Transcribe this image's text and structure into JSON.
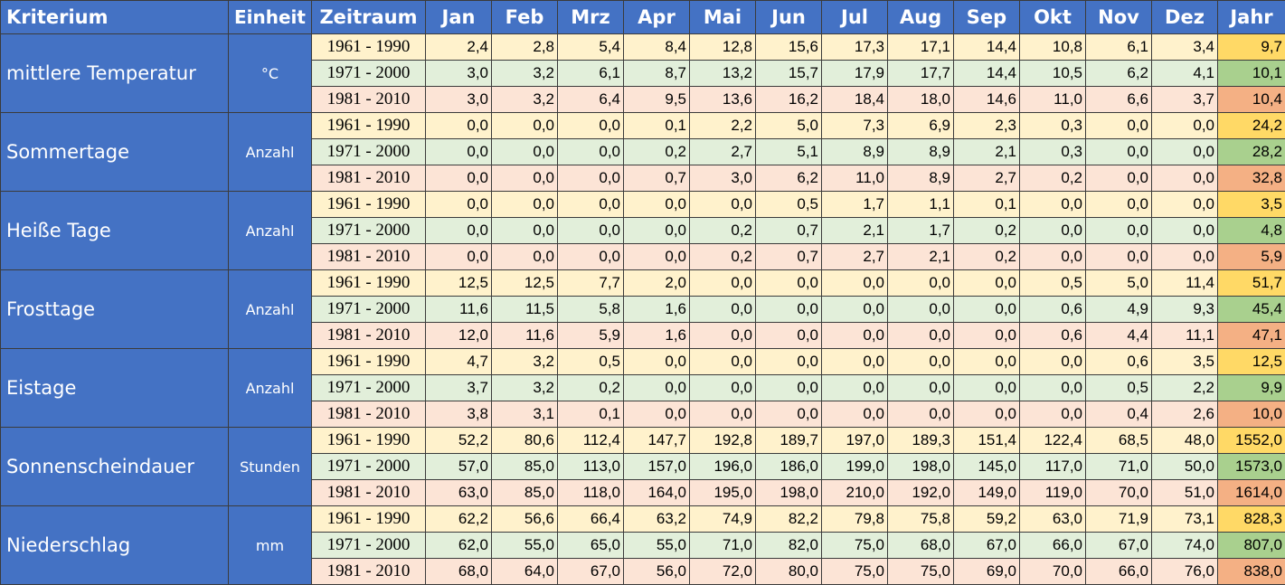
{
  "header": {
    "kriterium": "Kriterium",
    "einheit": "Einheit",
    "zeitraum": "Zeitraum",
    "months": [
      "Jan",
      "Feb",
      "Mrz",
      "Apr",
      "Mai",
      "Jun",
      "Jul",
      "Aug",
      "Sep",
      "Okt",
      "Nov",
      "Dez"
    ],
    "jahr": "Jahr"
  },
  "row_colors": {
    "period_1961_1990": "#fff2cc",
    "period_1971_2000": "#e2efda",
    "period_1981_2010": "#fce4d6",
    "year_1961_1990": "#ffd966",
    "year_1971_2000": "#a9d08e",
    "year_1981_2010": "#f4b084",
    "label_cells": "#4472c4"
  },
  "groups": [
    {
      "label": "mittlere Temperatur",
      "unit": "°C",
      "rows": [
        {
          "period": "1961 - 1990",
          "values": [
            "2,4",
            "2,8",
            "5,4",
            "8,4",
            "12,8",
            "15,6",
            "17,3",
            "17,1",
            "14,4",
            "10,8",
            "6,1",
            "3,4"
          ],
          "year": "9,7"
        },
        {
          "period": "1971 - 2000",
          "values": [
            "3,0",
            "3,2",
            "6,1",
            "8,7",
            "13,2",
            "15,7",
            "17,9",
            "17,7",
            "14,4",
            "10,5",
            "6,2",
            "4,1"
          ],
          "year": "10,1"
        },
        {
          "period": "1981 - 2010",
          "values": [
            "3,0",
            "3,2",
            "6,4",
            "9,5",
            "13,6",
            "16,2",
            "18,4",
            "18,0",
            "14,6",
            "11,0",
            "6,6",
            "3,7"
          ],
          "year": "10,4"
        }
      ]
    },
    {
      "label": "Sommertage",
      "unit": "Anzahl",
      "rows": [
        {
          "period": "1961 - 1990",
          "values": [
            "0,0",
            "0,0",
            "0,0",
            "0,1",
            "2,2",
            "5,0",
            "7,3",
            "6,9",
            "2,3",
            "0,3",
            "0,0",
            "0,0"
          ],
          "year": "24,2"
        },
        {
          "period": "1971 - 2000",
          "values": [
            "0,0",
            "0,0",
            "0,0",
            "0,2",
            "2,7",
            "5,1",
            "8,9",
            "8,9",
            "2,1",
            "0,3",
            "0,0",
            "0,0"
          ],
          "year": "28,2"
        },
        {
          "period": "1981 - 2010",
          "values": [
            "0,0",
            "0,0",
            "0,0",
            "0,7",
            "3,0",
            "6,2",
            "11,0",
            "8,9",
            "2,7",
            "0,2",
            "0,0",
            "0,0"
          ],
          "year": "32,8"
        }
      ]
    },
    {
      "label": "Heiße Tage",
      "unit": "Anzahl",
      "rows": [
        {
          "period": "1961 - 1990",
          "values": [
            "0,0",
            "0,0",
            "0,0",
            "0,0",
            "0,0",
            "0,5",
            "1,7",
            "1,1",
            "0,1",
            "0,0",
            "0,0",
            "0,0"
          ],
          "year": "3,5"
        },
        {
          "period": "1971 - 2000",
          "values": [
            "0,0",
            "0,0",
            "0,0",
            "0,0",
            "0,2",
            "0,7",
            "2,1",
            "1,7",
            "0,2",
            "0,0",
            "0,0",
            "0,0"
          ],
          "year": "4,8"
        },
        {
          "period": "1981 - 2010",
          "values": [
            "0,0",
            "0,0",
            "0,0",
            "0,0",
            "0,2",
            "0,7",
            "2,7",
            "2,1",
            "0,2",
            "0,0",
            "0,0",
            "0,0"
          ],
          "year": "5,9"
        }
      ]
    },
    {
      "label": "Frosttage",
      "unit": "Anzahl",
      "rows": [
        {
          "period": "1961 - 1990",
          "values": [
            "12,5",
            "12,5",
            "7,7",
            "2,0",
            "0,0",
            "0,0",
            "0,0",
            "0,0",
            "0,0",
            "0,5",
            "5,0",
            "11,4"
          ],
          "year": "51,7"
        },
        {
          "period": "1971 - 2000",
          "values": [
            "11,6",
            "11,5",
            "5,8",
            "1,6",
            "0,0",
            "0,0",
            "0,0",
            "0,0",
            "0,0",
            "0,6",
            "4,9",
            "9,3"
          ],
          "year": "45,4"
        },
        {
          "period": "1981 - 2010",
          "values": [
            "12,0",
            "11,6",
            "5,9",
            "1,6",
            "0,0",
            "0,0",
            "0,0",
            "0,0",
            "0,0",
            "0,6",
            "4,4",
            "11,1"
          ],
          "year": "47,1"
        }
      ]
    },
    {
      "label": "Eistage",
      "unit": "Anzahl",
      "rows": [
        {
          "period": "1961 - 1990",
          "values": [
            "4,7",
            "3,2",
            "0,5",
            "0,0",
            "0,0",
            "0,0",
            "0,0",
            "0,0",
            "0,0",
            "0,0",
            "0,6",
            "3,5"
          ],
          "year": "12,5"
        },
        {
          "period": "1971 - 2000",
          "values": [
            "3,7",
            "3,2",
            "0,2",
            "0,0",
            "0,0",
            "0,0",
            "0,0",
            "0,0",
            "0,0",
            "0,0",
            "0,5",
            "2,2"
          ],
          "year": "9,9"
        },
        {
          "period": "1981 - 2010",
          "values": [
            "3,8",
            "3,1",
            "0,1",
            "0,0",
            "0,0",
            "0,0",
            "0,0",
            "0,0",
            "0,0",
            "0,0",
            "0,4",
            "2,6"
          ],
          "year": "10,0"
        }
      ]
    },
    {
      "label": "Sonnenscheindauer",
      "unit": "Stunden",
      "rows": [
        {
          "period": "1961 - 1990",
          "values": [
            "52,2",
            "80,6",
            "112,4",
            "147,7",
            "192,8",
            "189,7",
            "197,0",
            "189,3",
            "151,4",
            "122,4",
            "68,5",
            "48,0"
          ],
          "year": "1552,0"
        },
        {
          "period": "1971 - 2000",
          "values": [
            "57,0",
            "85,0",
            "113,0",
            "157,0",
            "196,0",
            "186,0",
            "199,0",
            "198,0",
            "145,0",
            "117,0",
            "71,0",
            "50,0"
          ],
          "year": "1573,0"
        },
        {
          "period": "1981 - 2010",
          "values": [
            "63,0",
            "85,0",
            "118,0",
            "164,0",
            "195,0",
            "198,0",
            "210,0",
            "192,0",
            "149,0",
            "119,0",
            "70,0",
            "51,0"
          ],
          "year": "1614,0"
        }
      ]
    },
    {
      "label": "Niederschlag",
      "unit": "mm",
      "rows": [
        {
          "period": "1961 - 1990",
          "values": [
            "62,2",
            "56,6",
            "66,4",
            "63,2",
            "74,9",
            "82,2",
            "79,8",
            "75,8",
            "59,2",
            "63,0",
            "71,9",
            "73,1"
          ],
          "year": "828,3"
        },
        {
          "period": "1971 - 2000",
          "values": [
            "62,0",
            "55,0",
            "65,0",
            "55,0",
            "71,0",
            "82,0",
            "75,0",
            "68,0",
            "67,0",
            "66,0",
            "67,0",
            "74,0"
          ],
          "year": "807,0"
        },
        {
          "period": "1981 - 2010",
          "values": [
            "68,0",
            "64,0",
            "67,0",
            "56,0",
            "72,0",
            "80,0",
            "75,0",
            "75,0",
            "69,0",
            "70,0",
            "66,0",
            "76,0"
          ],
          "year": "838,0"
        }
      ]
    }
  ]
}
